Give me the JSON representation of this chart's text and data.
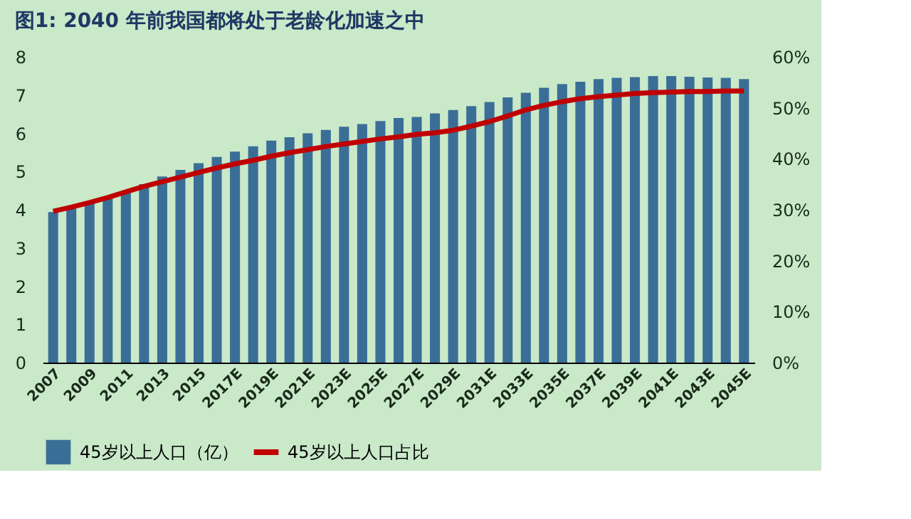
{
  "chart_data": {
    "type": "bar",
    "title": "图1:  2040 年前我国都将处于老龄化加速之中",
    "categories": [
      "2007",
      null,
      "2009",
      null,
      "2011",
      null,
      "2013",
      null,
      "2015",
      null,
      "2017E",
      null,
      "2019E",
      null,
      "2021E",
      null,
      "2023E",
      null,
      "2025E",
      null,
      "2027E",
      null,
      "2029E",
      null,
      "2031E",
      null,
      "2033E",
      null,
      "2035E",
      null,
      "2037E",
      null,
      "2039E",
      null,
      "2041E",
      null,
      "2043E",
      null,
      "2045E"
    ],
    "series": [
      {
        "name": "45岁以上人口（亿）",
        "color": "#3b6e97",
        "values": [
          3.94,
          4.06,
          4.18,
          4.33,
          4.48,
          4.67,
          4.87,
          5.04,
          5.22,
          5.38,
          5.52,
          5.66,
          5.81,
          5.9,
          6.0,
          6.09,
          6.17,
          6.24,
          6.32,
          6.4,
          6.43,
          6.52,
          6.61,
          6.71,
          6.82,
          6.94,
          7.06,
          7.19,
          7.29,
          7.35,
          7.42,
          7.45,
          7.47,
          7.5,
          7.5,
          7.48,
          7.46,
          7.45,
          7.42
        ]
      },
      {
        "name": "45岁以上人口占比",
        "type": "line",
        "axis": "y2",
        "color": "#c00000",
        "values": [
          29.7,
          30.5,
          31.4,
          32.4,
          33.5,
          34.6,
          35.5,
          36.4,
          37.3,
          38.2,
          39.0,
          39.7,
          40.5,
          41.2,
          41.8,
          42.4,
          42.9,
          43.4,
          43.9,
          44.3,
          44.8,
          45.1,
          45.6,
          46.4,
          47.3,
          48.4,
          49.6,
          50.5,
          51.2,
          51.8,
          52.2,
          52.5,
          52.8,
          53.0,
          53.1,
          53.2,
          53.2,
          53.3,
          53.3
        ]
      }
    ],
    "ylim": [
      0,
      8
    ],
    "yticks": [
      0,
      1,
      2,
      3,
      4,
      5,
      6,
      7,
      8
    ],
    "y2lim": [
      0,
      60
    ],
    "y2ticks": [
      {
        "value": 0,
        "label": "0%"
      },
      {
        "value": 10,
        "label": "10%"
      },
      {
        "value": 20,
        "label": "20%"
      },
      {
        "value": 30,
        "label": "30%"
      },
      {
        "value": 40,
        "label": "40%"
      },
      {
        "value": 50,
        "label": "50%"
      },
      {
        "value": 60,
        "label": "60%"
      }
    ],
    "grid": false,
    "legend": "bottom",
    "marker": "none",
    "line_style": "solid"
  }
}
